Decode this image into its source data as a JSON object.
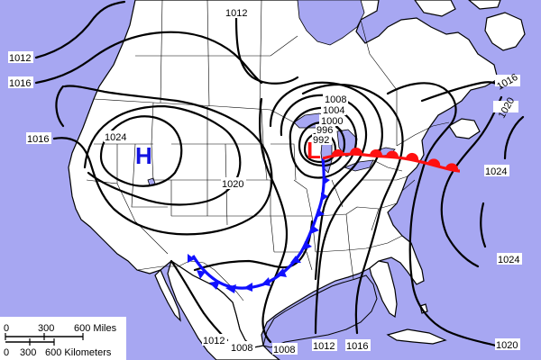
{
  "pressure_centers": {
    "high": "H",
    "low": "L"
  },
  "isobar_labels": {
    "l1012_top": "1012",
    "l1012_left": "1012",
    "l1016_left_top": "1016",
    "l1016_left_mid": "1016",
    "l1024_west": "1024",
    "l1020_west": "1020",
    "l1008_low": "1008",
    "l1004_low": "1004",
    "l1000_low": "1000",
    "l996_low": "996",
    "l992_low": "992",
    "l1016_ne": "1016",
    "l1020_ne": "1020",
    "l1024_east": "1024",
    "l1024_east_b": "1024",
    "l1012_bottom_a": "1012",
    "l1008_bottom_a": "1008",
    "l1008_bottom_b": "1008",
    "l1012_bottom_b": "1012",
    "l1016_bottom": "1016",
    "l1020_bottom": "1020"
  },
  "scale_bar": {
    "miles_0": "0",
    "miles_300": "300",
    "miles_600": "600 Miles",
    "km_0": "0",
    "km_300": "300",
    "km_600": "600 Kilometers"
  },
  "colors": {
    "water": "#a7a7f2",
    "land": "#ffffff",
    "cold_front": "#1010ff",
    "warm_front": "#ff1010",
    "high": "#1414e0",
    "low": "#ff1010"
  }
}
